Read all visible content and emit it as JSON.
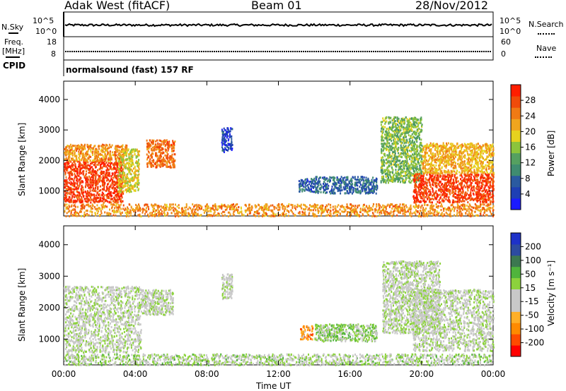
{
  "header": {
    "station": "Adak West (fitACF)",
    "beam": "Beam 01",
    "date": "28/Nov/2012"
  },
  "summary": {
    "left_sky_label": "N.Sky",
    "left_sky_ticks": [
      "10^5",
      "10^0"
    ],
    "right_search_label": "N.Search",
    "right_search_ticks": [
      "10^5",
      "10^0"
    ],
    "freq_label": "Freq.",
    "freq_unit": "[MHz]",
    "freq_ticks": [
      "18",
      "8"
    ],
    "nave_label": "Nave",
    "nave_ticks": [
      "60",
      "0"
    ],
    "cpid_label": "CPID",
    "cpid_text": "normalsound (fast) 157 RF"
  },
  "colors": {
    "power_scale": [
      "#1b1bff",
      "#1e3fb4",
      "#2a5aa0",
      "#3f8c70",
      "#55a060",
      "#8cc43c",
      "#e6d21e",
      "#f0a51e",
      "#f07a14",
      "#f04b0a",
      "#ff1e00"
    ],
    "velocity_scale": [
      "#ff0000",
      "#ff4b00",
      "#ff8a00",
      "#ffaf28",
      "#c8c8c8",
      "#c8c8c8",
      "#8cd23c",
      "#50b43c",
      "#3c7850",
      "#2d4ba0",
      "#1e32c8"
    ]
  },
  "chart_data": [
    {
      "type": "heatmap",
      "title": "Power",
      "ylabel": "Slant Range [km]",
      "xlabel": "",
      "x_ticks": [
        "00:00",
        "04:00",
        "08:00",
        "12:00",
        "16:00",
        "20:00",
        "00:00"
      ],
      "y_ticks": [
        "1000",
        "2000",
        "3000",
        "4000"
      ],
      "ylim": [
        180,
        4600
      ],
      "colorbar": {
        "label": "Power [dB]",
        "ticks": [
          "4",
          "8",
          "12",
          "16",
          "20",
          "24",
          "28"
        ],
        "range": [
          0,
          30
        ]
      },
      "regions": [
        {
          "t0": 0.0,
          "t1": 3.3,
          "r0": 650,
          "r1": 2000,
          "value": 27
        },
        {
          "t0": 0.0,
          "t1": 3.5,
          "r0": 2000,
          "r1": 2550,
          "value": 22
        },
        {
          "t0": 3.0,
          "t1": 4.2,
          "r0": 1000,
          "r1": 2400,
          "value": 18
        },
        {
          "t0": 4.6,
          "t1": 6.2,
          "r0": 1800,
          "r1": 2700,
          "value": 24
        },
        {
          "t0": 8.8,
          "t1": 9.4,
          "r0": 2300,
          "r1": 3100,
          "value": 5
        },
        {
          "t0": 13.1,
          "t1": 14.0,
          "r0": 1000,
          "r1": 1450,
          "value": 6
        },
        {
          "t0": 14.0,
          "t1": 17.5,
          "r0": 950,
          "r1": 1500,
          "value": 7
        },
        {
          "t0": 17.7,
          "t1": 20.0,
          "r0": 1300,
          "r1": 3450,
          "value": 14
        },
        {
          "t0": 19.5,
          "t1": 24.0,
          "r0": 650,
          "r1": 1600,
          "value": 27
        },
        {
          "t0": 20.0,
          "t1": 24.0,
          "r0": 1600,
          "r1": 2600,
          "value": 20
        },
        {
          "t0": 0.0,
          "t1": 24.0,
          "r0": 200,
          "r1": 600,
          "value": 22
        }
      ]
    },
    {
      "type": "heatmap",
      "title": "Velocity",
      "ylabel": "Slant Range [km]",
      "xlabel": "Time UT",
      "x_ticks": [
        "00:00",
        "04:00",
        "08:00",
        "12:00",
        "16:00",
        "20:00",
        "00:00"
      ],
      "y_ticks": [
        "1000",
        "2000",
        "3000",
        "4000"
      ],
      "ylim": [
        180,
        4600
      ],
      "colorbar": {
        "label": "Velocity [m s⁻¹]",
        "ticks": [
          "-200",
          "-100",
          "-50",
          "-15",
          "15",
          "50",
          "100",
          "200"
        ],
        "range": [
          -250,
          250
        ]
      },
      "regions": [
        {
          "t0": 0.0,
          "t1": 4.3,
          "r0": 600,
          "r1": 2700,
          "value": 0
        },
        {
          "t0": 4.3,
          "t1": 6.1,
          "r0": 1800,
          "r1": 2600,
          "value": 0
        },
        {
          "t0": 8.8,
          "t1": 9.4,
          "r0": 2300,
          "r1": 3100,
          "value": 0
        },
        {
          "t0": 13.2,
          "t1": 13.9,
          "r0": 1000,
          "r1": 1450,
          "value": -120
        },
        {
          "t0": 14.0,
          "t1": 17.5,
          "r0": 950,
          "r1": 1500,
          "value": 40
        },
        {
          "t0": 17.8,
          "t1": 21.0,
          "r0": 1200,
          "r1": 3500,
          "value": 0
        },
        {
          "t0": 19.5,
          "t1": 24.0,
          "r0": 650,
          "r1": 2600,
          "value": 0
        },
        {
          "t0": 0.0,
          "t1": 24.0,
          "r0": 200,
          "r1": 550,
          "value": 20
        }
      ]
    }
  ]
}
